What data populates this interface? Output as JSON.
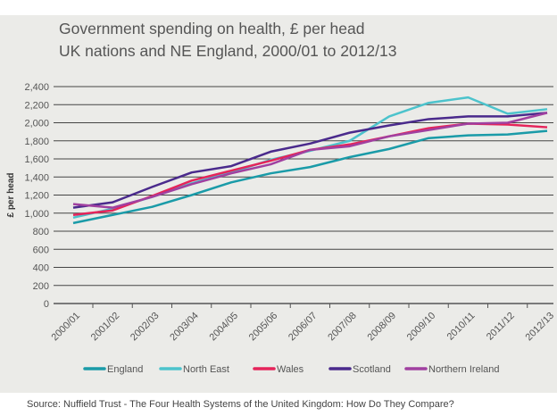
{
  "chart_data": {
    "type": "line",
    "title": "Government spending on health, £ per head",
    "subtitle": "UK nations and NE England, 2000/01 to 2012/13",
    "xlabel": "",
    "ylabel": "£ per head",
    "ylim": [
      0,
      2400
    ],
    "yticks": [
      0,
      200,
      400,
      600,
      800,
      1000,
      1200,
      1400,
      1600,
      1800,
      2000,
      2200,
      2400
    ],
    "ytick_labels": [
      "0",
      "200",
      "400",
      "600",
      "800",
      "1,000",
      "1,200",
      "1,400",
      "1,600",
      "1,800",
      "2,000",
      "2,200",
      "2,400"
    ],
    "categories": [
      "2000/01",
      "2001/02",
      "2002/03",
      "2003/04",
      "2004/05",
      "2005/06",
      "2006/07",
      "2007/08",
      "2008/09",
      "2009/10",
      "2010/11",
      "2011/12",
      "2012/13"
    ],
    "grid": true,
    "legend_position": "bottom",
    "series": [
      {
        "name": "England",
        "color": "#1a9ba8",
        "values": [
          890,
          980,
          1070,
          1200,
          1340,
          1440,
          1510,
          1620,
          1710,
          1830,
          1860,
          1870,
          1910
        ]
      },
      {
        "name": "North East",
        "color": "#4cc3cc",
        "values": [
          950,
          1050,
          1180,
          1330,
          1450,
          1590,
          1690,
          1800,
          2070,
          2220,
          2280,
          2100,
          2150
        ]
      },
      {
        "name": "Wales",
        "color": "#e5245a",
        "values": [
          980,
          1030,
          1190,
          1360,
          1470,
          1580,
          1700,
          1760,
          1850,
          1940,
          1990,
          1980,
          1950
        ]
      },
      {
        "name": "Scotland",
        "color": "#4a2a8c",
        "values": [
          1060,
          1120,
          1290,
          1450,
          1520,
          1680,
          1770,
          1890,
          1970,
          2040,
          2070,
          2070,
          2110
        ]
      },
      {
        "name": "Northern Ireland",
        "color": "#a040a0",
        "values": [
          1100,
          1060,
          1180,
          1320,
          1440,
          1540,
          1700,
          1740,
          1850,
          1920,
          1990,
          2000,
          2110
        ]
      }
    ]
  },
  "source": "Source: Nuffield Trust - The Four Health Systems of the United Kingdom: How Do They Compare?"
}
